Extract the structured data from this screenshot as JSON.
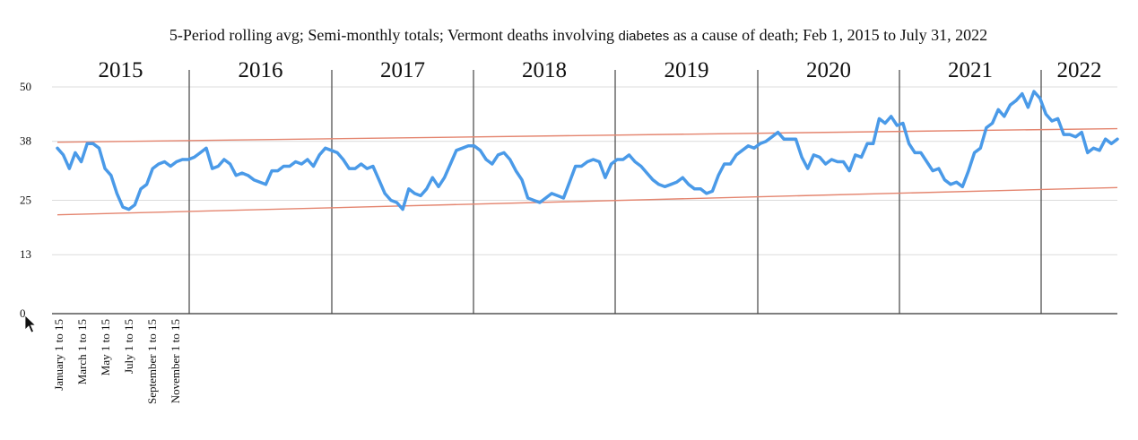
{
  "title_parts": {
    "before": "5-Period rolling avg; Semi-monthly totals; Vermont deaths involving ",
    "highlight": "diabetes",
    "after": " as a cause of death; Feb 1, 2015 to July 31, 2022"
  },
  "chart_data": {
    "type": "line",
    "title": "5-Period rolling avg; Semi-monthly totals; Vermont deaths involving diabetes as a cause of death; Feb 1, 2015 to July 31, 2022",
    "xlabel": "",
    "ylabel": "",
    "ylim": [
      0,
      50
    ],
    "y_ticks": [
      "0",
      "13",
      "25",
      "38",
      "50"
    ],
    "x_tick_labels": [
      "January 1 to 15",
      "March 1 to 15",
      "May 1 to 15",
      "July 1 to 15",
      "September 1 to 15",
      "November 1 to 15"
    ],
    "years": [
      "2015",
      "2016",
      "2017",
      "2018",
      "2019",
      "2020",
      "2021",
      "2022"
    ],
    "grid": true,
    "series": [
      {
        "color": "#4a9ae8",
        "values": [
          36.5,
          35,
          32,
          35.5,
          33.5,
          37.5,
          37.5,
          36.5,
          32,
          30.5,
          26.5,
          23.5,
          23,
          24,
          27.5,
          28.5,
          32,
          33,
          33.5,
          32.5,
          33.5,
          34,
          34,
          34.5,
          35.5,
          36.5,
          32,
          32.5,
          34,
          33,
          30.5,
          31,
          30.5,
          29.5,
          29,
          28.5,
          31.5,
          31.5,
          32.5,
          32.5,
          33.5,
          33,
          34,
          32.5,
          35,
          36.5,
          36,
          35.5,
          34,
          32,
          32,
          33,
          32,
          32.5,
          29.5,
          26.5,
          25,
          24.5,
          23,
          27.5,
          26.5,
          26,
          27.5,
          30,
          28,
          30,
          33,
          36,
          36.5,
          37,
          37,
          36,
          34,
          33,
          35,
          35.5,
          34,
          31.5,
          29.5,
          25.5,
          25,
          24.5,
          25.5,
          26.5,
          26,
          25.5,
          29,
          32.5,
          32.5,
          33.5,
          34,
          33.5,
          30,
          33,
          34,
          34,
          35,
          33.5,
          32.5,
          31,
          29.5,
          28.5,
          28,
          28.5,
          29,
          30,
          28.5,
          27.5,
          27.5,
          26.5,
          27,
          30.5,
          33,
          33,
          35,
          36,
          37,
          36.5,
          37.5,
          38,
          39,
          40,
          38.5,
          38.5,
          38.5,
          34.5,
          32,
          35,
          34.5,
          33,
          34,
          33.5,
          33.5,
          31.5,
          35,
          34.5,
          37.5,
          37.5,
          43,
          42,
          43.5,
          41.5,
          42,
          37.5,
          35.5,
          35.5,
          33.5,
          31.5,
          32,
          29.5,
          28.5,
          29,
          28,
          31.5,
          35.5,
          36.5,
          41,
          42,
          45,
          43.5,
          46,
          47,
          48.5,
          45.5,
          49,
          47.5,
          44,
          42.5,
          43,
          39.5,
          39.5,
          39,
          40,
          35.5,
          36.5,
          36,
          38.5,
          37.5,
          38.5
        ]
      }
    ],
    "trend_lines": [
      {
        "color": "#e4856f",
        "x": [
          0,
          182
        ],
        "y": [
          37.8,
          40.8
        ]
      },
      {
        "color": "#e4856f",
        "x": [
          0,
          182
        ],
        "y": [
          21.8,
          27.8
        ]
      }
    ]
  }
}
